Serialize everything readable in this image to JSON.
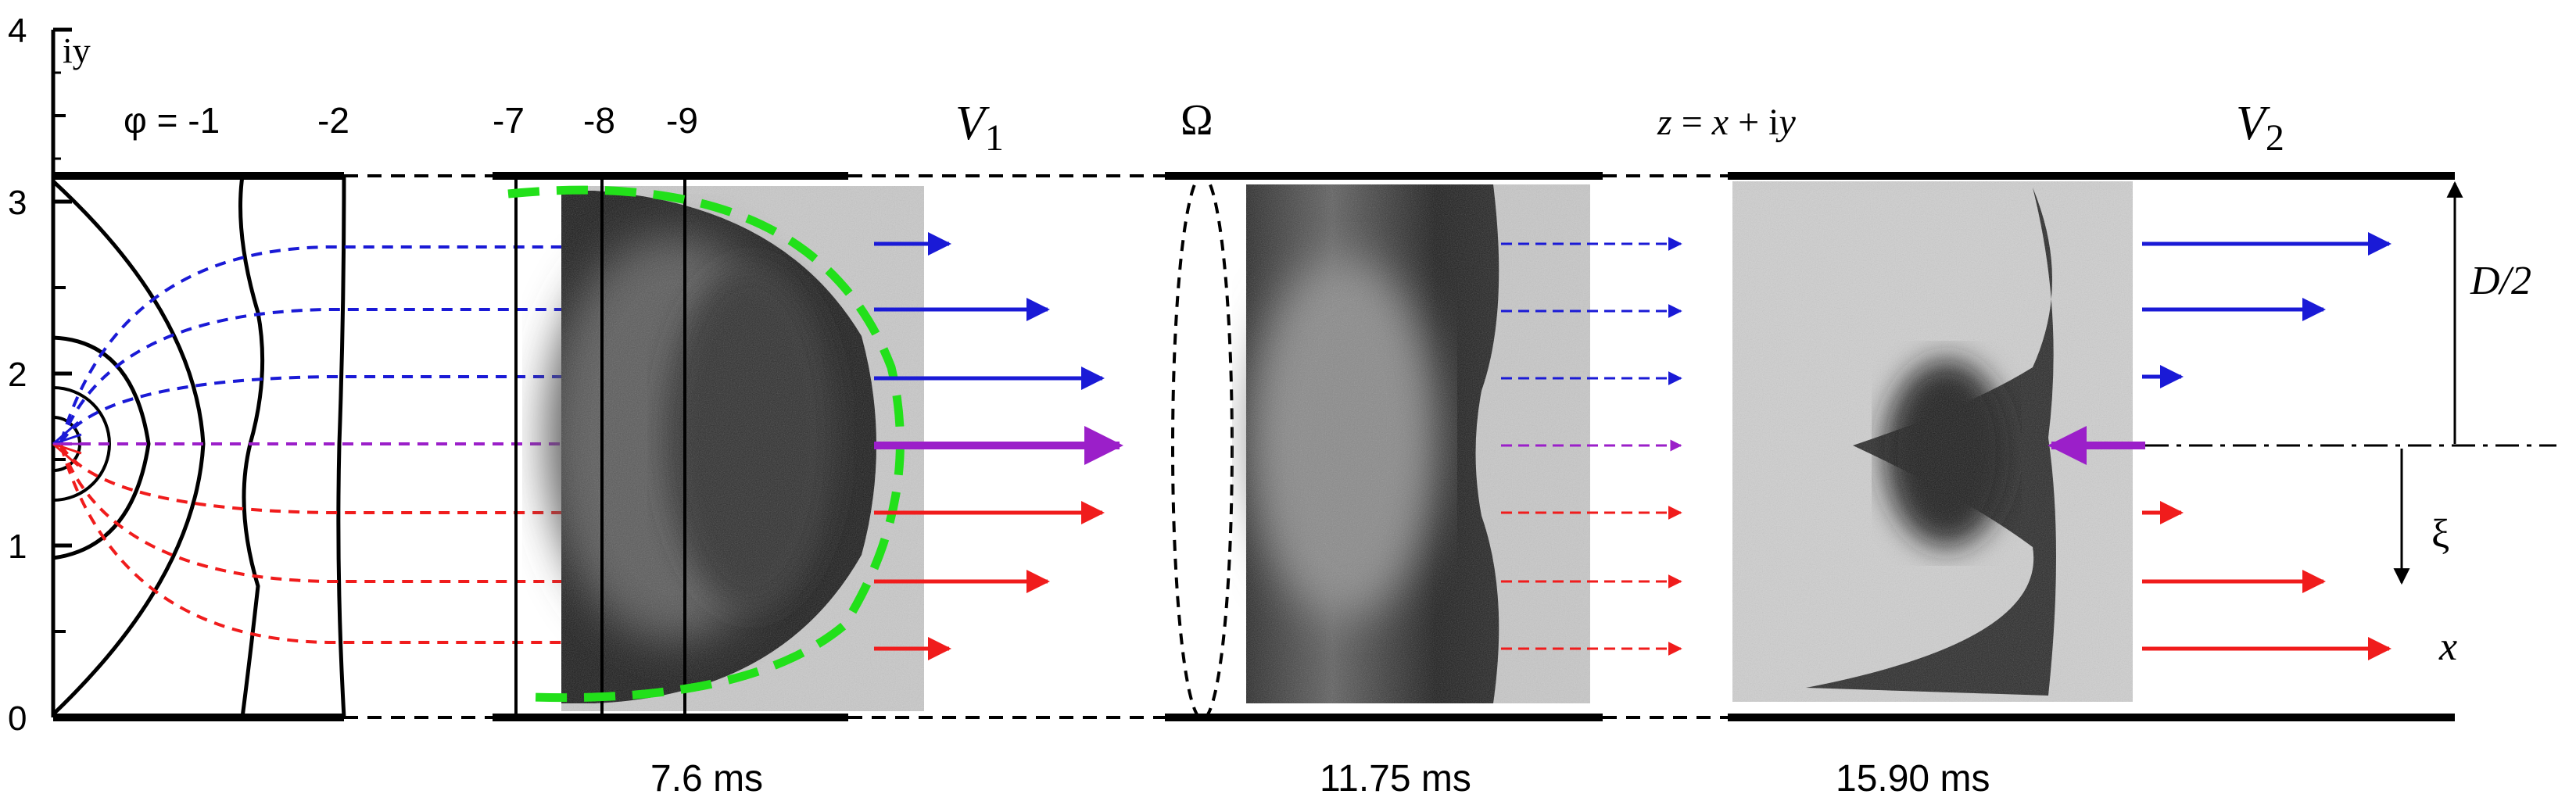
{
  "axis": {
    "y_label": "iy",
    "ticks": [
      "0",
      "1",
      "2",
      "3",
      "4"
    ]
  },
  "labels": {
    "phi_eq": "φ = -1",
    "phi_m2": "-2",
    "phi_m7": "-7",
    "phi_m8": "-8",
    "phi_m9": "-9",
    "v1": "V",
    "v1_sub": "1",
    "omega": "Ω",
    "z_eq_pre": "z",
    "z_eq_mid": " = ",
    "z_eq_x": "x",
    "z_eq_post": " + i",
    "z_eq_y": "y",
    "v2": "V",
    "v2_sub": "2",
    "d_half": "D/2",
    "xi": "ξ",
    "x": "x"
  },
  "times": [
    "7.6 ms",
    "11.75 ms",
    "15.90 ms"
  ],
  "colors": {
    "upper": "#1a1ad6",
    "center": "#9b1fc9",
    "lower": "#f01c1c",
    "interface": "#22e01a"
  }
}
